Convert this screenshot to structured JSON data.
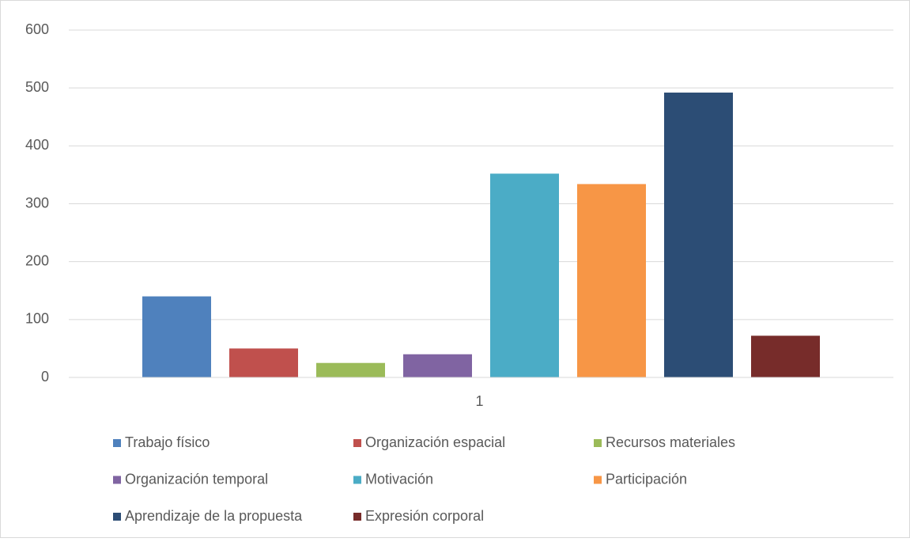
{
  "chart_data": {
    "type": "bar",
    "categories": [
      "1"
    ],
    "series": [
      {
        "name": "Trabajo físico",
        "color": "#4f81bd",
        "values": [
          140
        ]
      },
      {
        "name": "Organización espacial",
        "color": "#c0504d",
        "values": [
          50
        ]
      },
      {
        "name": "Recursos materiales",
        "color": "#9bbb59",
        "values": [
          25
        ]
      },
      {
        "name": "Organización temporal",
        "color": "#8064a2",
        "values": [
          40
        ]
      },
      {
        "name": "Motivación",
        "color": "#4bacc6",
        "values": [
          352
        ]
      },
      {
        "name": "Participación",
        "color": "#f79646",
        "values": [
          334
        ]
      },
      {
        "name": "Aprendizaje de la propuesta",
        "color": "#2c4d75",
        "values": [
          492
        ]
      },
      {
        "name": "Expresión corporal",
        "color": "#772c2a",
        "values": [
          72
        ]
      }
    ],
    "ylim": [
      0,
      600
    ],
    "yticks": [
      0,
      100,
      200,
      300,
      400,
      500,
      600
    ],
    "grid": true,
    "legend": "bottom"
  }
}
